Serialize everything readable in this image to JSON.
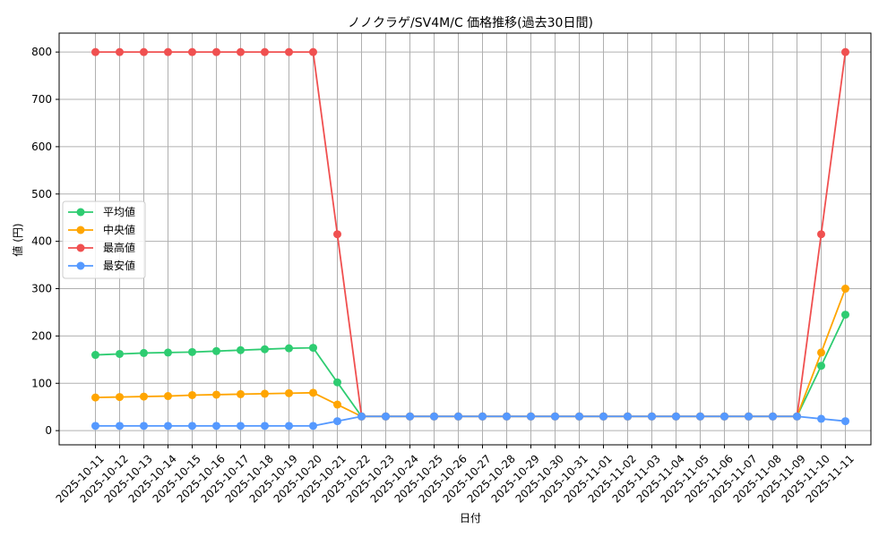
{
  "chart_data": {
    "type": "line",
    "title": "ノノクラゲ/SV4M/C 価格推移(過去30日間)",
    "xlabel": "日付",
    "ylabel": "値 (円)",
    "ylim": [
      -30,
      840
    ],
    "yticks": [
      0,
      100,
      200,
      300,
      400,
      500,
      600,
      700,
      800
    ],
    "grid": true,
    "legend_position": "center-left",
    "x": [
      "2025-10-11",
      "2025-10-12",
      "2025-10-13",
      "2025-10-14",
      "2025-10-15",
      "2025-10-16",
      "2025-10-17",
      "2025-10-18",
      "2025-10-19",
      "2025-10-20",
      "2025-10-21",
      "2025-10-22",
      "2025-10-23",
      "2025-10-24",
      "2025-10-25",
      "2025-10-26",
      "2025-10-27",
      "2025-10-28",
      "2025-10-29",
      "2025-10-30",
      "2025-10-31",
      "2025-11-01",
      "2025-11-02",
      "2025-11-03",
      "2025-11-04",
      "2025-11-05",
      "2025-11-06",
      "2025-11-07",
      "2025-11-08",
      "2025-11-09",
      "2025-11-10",
      "2025-11-11"
    ],
    "series": [
      {
        "name": "平均値",
        "color": "#2ecc71",
        "values": [
          160,
          162,
          164,
          165,
          166,
          168,
          170,
          172,
          174,
          175,
          102,
          30,
          30,
          30,
          30,
          30,
          30,
          30,
          30,
          30,
          30,
          30,
          30,
          30,
          30,
          30,
          30,
          30,
          30,
          30,
          137,
          245
        ]
      },
      {
        "name": "中央値",
        "color": "#ffa500",
        "values": [
          70,
          71,
          72,
          73,
          75,
          76,
          77,
          78,
          79,
          80,
          55,
          30,
          30,
          30,
          30,
          30,
          30,
          30,
          30,
          30,
          30,
          30,
          30,
          30,
          30,
          30,
          30,
          30,
          30,
          30,
          165,
          300
        ]
      },
      {
        "name": "最高値",
        "color": "#f05050",
        "values": [
          800,
          800,
          800,
          800,
          800,
          800,
          800,
          800,
          800,
          800,
          415,
          30,
          30,
          30,
          30,
          30,
          30,
          30,
          30,
          30,
          30,
          30,
          30,
          30,
          30,
          30,
          30,
          30,
          30,
          30,
          415,
          800
        ]
      },
      {
        "name": "最安値",
        "color": "#5599ff",
        "values": [
          10,
          10,
          10,
          10,
          10,
          10,
          10,
          10,
          10,
          10,
          20,
          30,
          30,
          30,
          30,
          30,
          30,
          30,
          30,
          30,
          30,
          30,
          30,
          30,
          30,
          30,
          30,
          30,
          30,
          30,
          25,
          20
        ]
      }
    ]
  }
}
